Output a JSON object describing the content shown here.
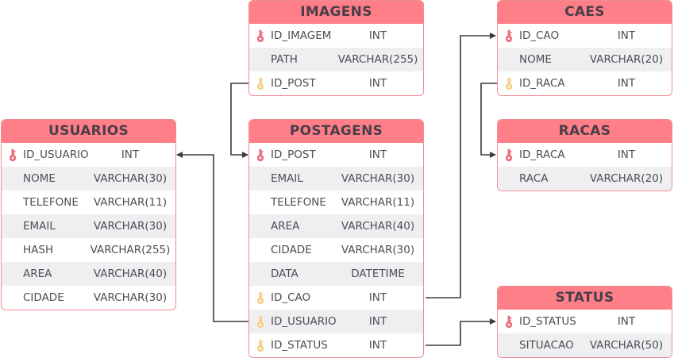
{
  "colors": {
    "header": "#ff7f88",
    "border": "#f08c94",
    "primary_key": "#e8707c",
    "foreign_key": "#f4d08a",
    "line": "#3d3a40"
  },
  "tables": {
    "imagens": {
      "title": "IMAGENS",
      "rows": [
        {
          "name": "ID_IMAGEM",
          "type": "INT",
          "key": "pk"
        },
        {
          "name": "PATH",
          "type": "VARCHAR(255)",
          "key": ""
        },
        {
          "name": "ID_POST",
          "type": "INT",
          "key": "fk"
        }
      ]
    },
    "caes": {
      "title": "CAES",
      "rows": [
        {
          "name": "ID_CAO",
          "type": "INT",
          "key": "pk"
        },
        {
          "name": "NOME",
          "type": "VARCHAR(20)",
          "key": ""
        },
        {
          "name": "ID_RACA",
          "type": "INT",
          "key": "fk"
        }
      ]
    },
    "racas": {
      "title": "RACAS",
      "rows": [
        {
          "name": "ID_RACA",
          "type": "INT",
          "key": "pk"
        },
        {
          "name": "RACA",
          "type": "VARCHAR(20)",
          "key": ""
        }
      ]
    },
    "usuarios": {
      "title": "USUARIOS",
      "rows": [
        {
          "name": "ID_USUARIO",
          "type": "INT",
          "key": "pk"
        },
        {
          "name": "NOME",
          "type": "VARCHAR(30)",
          "key": ""
        },
        {
          "name": "TELEFONE",
          "type": "VARCHAR(11)",
          "key": ""
        },
        {
          "name": "EMAIL",
          "type": "VARCHAR(30)",
          "key": ""
        },
        {
          "name": "HASH",
          "type": "VARCHAR(255)",
          "key": ""
        },
        {
          "name": "AREA",
          "type": "VARCHAR(40)",
          "key": ""
        },
        {
          "name": "CIDADE",
          "type": "VARCHAR(30)",
          "key": ""
        }
      ]
    },
    "postagens": {
      "title": "POSTAGENS",
      "rows": [
        {
          "name": "ID_POST",
          "type": "INT",
          "key": "pk"
        },
        {
          "name": "EMAIL",
          "type": "VARCHAR(30)",
          "key": ""
        },
        {
          "name": "TELEFONE",
          "type": "VARCHAR(11)",
          "key": ""
        },
        {
          "name": "AREA",
          "type": "VARCHAR(40)",
          "key": ""
        },
        {
          "name": "CIDADE",
          "type": "VARCHAR(30)",
          "key": ""
        },
        {
          "name": "DATA",
          "type": "DATETIME",
          "key": ""
        },
        {
          "name": "ID_CAO",
          "type": "INT",
          "key": "fk"
        },
        {
          "name": "ID_USUARIO",
          "type": "INT",
          "key": "fk"
        },
        {
          "name": "ID_STATUS",
          "type": "INT",
          "key": "fk"
        }
      ]
    },
    "status": {
      "title": "STATUS",
      "rows": [
        {
          "name": "ID_STATUS",
          "type": "INT",
          "key": "pk"
        },
        {
          "name": "SITUACAO",
          "type": "VARCHAR(50)",
          "key": ""
        }
      ]
    }
  }
}
